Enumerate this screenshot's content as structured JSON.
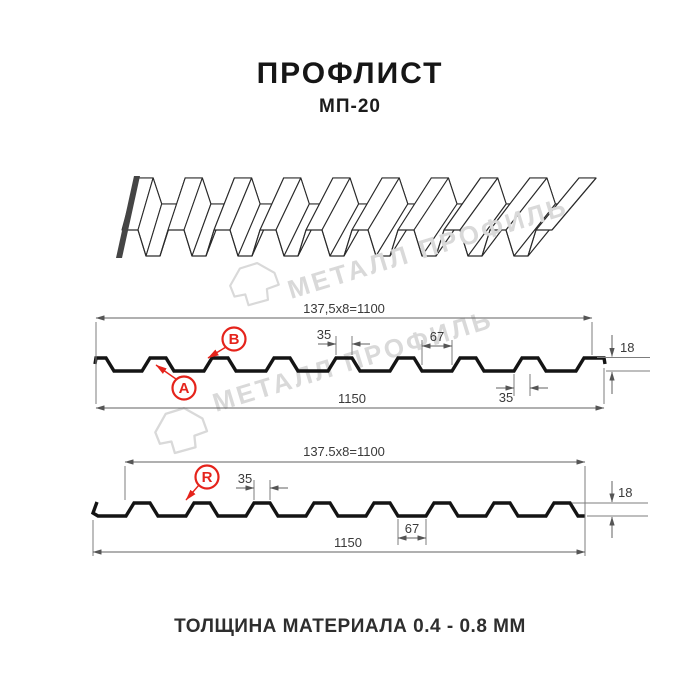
{
  "header": {
    "title": "ПРОФЛИСТ",
    "subtitle": "МП-20"
  },
  "footer": {
    "text": "ТОЛЩИНА МАТЕРИАЛА 0.4 - 0.8 ММ"
  },
  "watermark": {
    "text": "МЕТАЛЛ ПРОФИЛЬ"
  },
  "colors": {
    "accent_red": "#e5231b",
    "drawing_line": "#141414",
    "dimension_line": "#606060",
    "watermark_gray": "#d9d9d9",
    "background": "#ffffff"
  },
  "profile_top": {
    "coverage": "137,5x8=1100",
    "overall": "1150",
    "rib_top": "35",
    "valley": "67",
    "height": "18",
    "rib_bottom": "35",
    "label_a": "A",
    "label_b": "B"
  },
  "profile_bottom": {
    "coverage": "137.5x8=1100",
    "overall": "1150",
    "rib_top": "35",
    "valley": "67",
    "height": "18",
    "label_r": "R"
  }
}
